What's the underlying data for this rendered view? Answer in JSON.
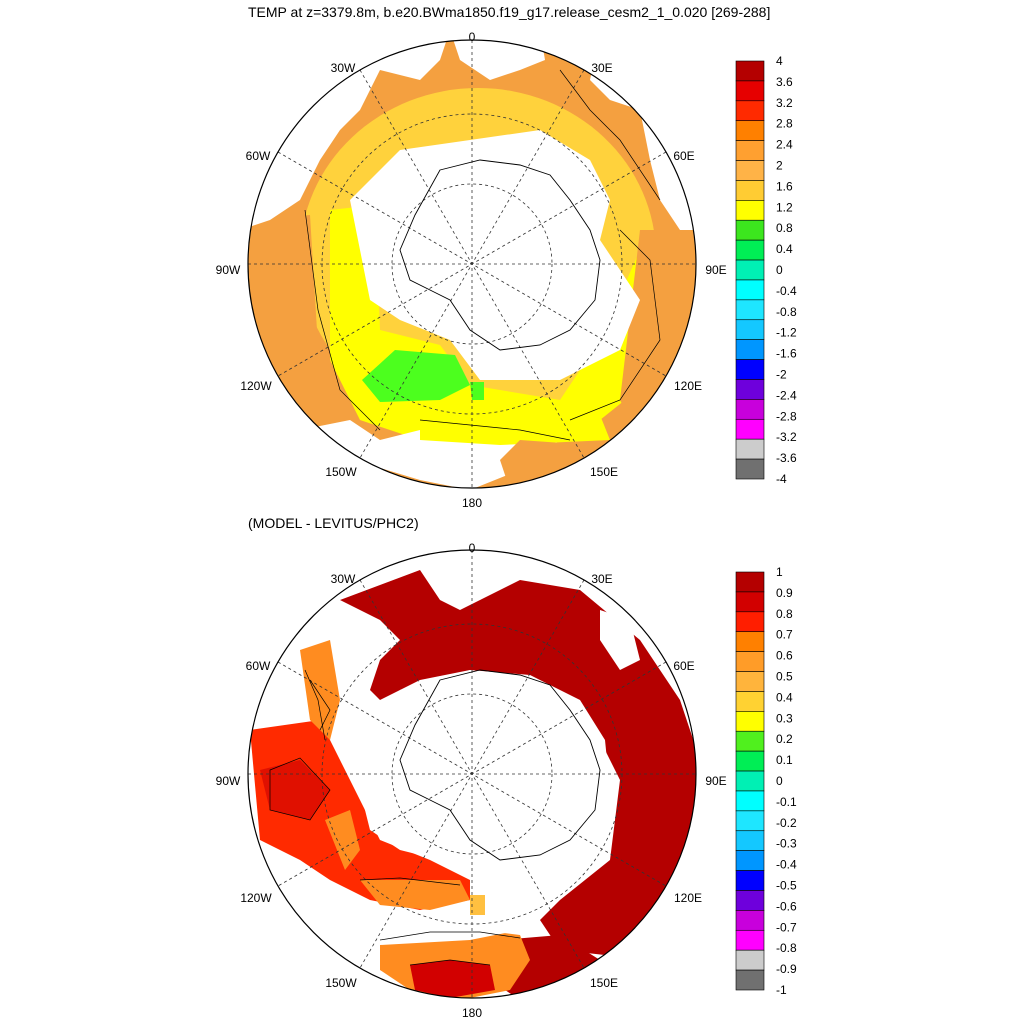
{
  "panels": [
    {
      "title": "TEMP at z=3379.8m, b.e20.BWma1850.f19_g17.release_cesm2_1_0.020 [269-288]",
      "longitude_labels": [
        "0",
        "30E",
        "60E",
        "90E",
        "120E",
        "150E",
        "180",
        "150W",
        "120W",
        "90W",
        "60W",
        "30W"
      ],
      "colorbar": {
        "labels": [
          "4",
          "3.6",
          "3.2",
          "2.8",
          "2.4",
          "2",
          "1.6",
          "1.2",
          "0.8",
          "0.4",
          "0",
          "-0.4",
          "-0.8",
          "-1.2",
          "-1.6",
          "-2",
          "-2.4",
          "-2.8",
          "-3.2",
          "-3.6",
          "-4"
        ],
        "colors": [
          "#b40000",
          "#e60000",
          "#ff2a00",
          "#ff8000",
          "#ffa030",
          "#ffb347",
          "#ffcc33",
          "#ffff00",
          "#3ce61e",
          "#00ee55",
          "#00f0b4",
          "#00ffff",
          "#1ee6ff",
          "#14c8ff",
          "#0096ff",
          "#0000ff",
          "#6e00dc",
          "#c800dc",
          "#ff00ff",
          "#cccccc",
          "#707070"
        ]
      },
      "fill_colors": {
        "ocean_base": "#ffbb40",
        "ring_outer": "#f4a040",
        "ring_inner": "#ffd23c",
        "yellow_band": "#ffff00",
        "green_patch": "#4cff1e",
        "land": "#ffffff"
      }
    },
    {
      "title": "(MODEL - LEVITUS/PHC2)",
      "longitude_labels": [
        "0",
        "30E",
        "60E",
        "90E",
        "120E",
        "150E",
        "180",
        "150W",
        "120W",
        "90W",
        "60W",
        "30W"
      ],
      "colorbar": {
        "labels": [
          "1",
          "0.9",
          "0.8",
          "0.7",
          "0.6",
          "0.5",
          "0.4",
          "0.3",
          "0.2",
          "0.1",
          "0",
          "-0.1",
          "-0.2",
          "-0.3",
          "-0.4",
          "-0.5",
          "-0.6",
          "-0.7",
          "-0.8",
          "-0.9",
          "-1"
        ],
        "colors": [
          "#b40000",
          "#d20000",
          "#ff1e00",
          "#ff8000",
          "#ff9c28",
          "#ffb43c",
          "#ffd232",
          "#ffff00",
          "#50f01e",
          "#00ee55",
          "#00f0b4",
          "#00ffff",
          "#1ee6ff",
          "#14c8ff",
          "#0096ff",
          "#0000ff",
          "#6e00dc",
          "#c800dc",
          "#ff00ff",
          "#cccccc",
          "#707070"
        ]
      },
      "fill_colors": {
        "dark_red": "#b40000",
        "red": "#ff2a00",
        "orange": "#ff8c20",
        "land": "#ffffff"
      }
    }
  ]
}
